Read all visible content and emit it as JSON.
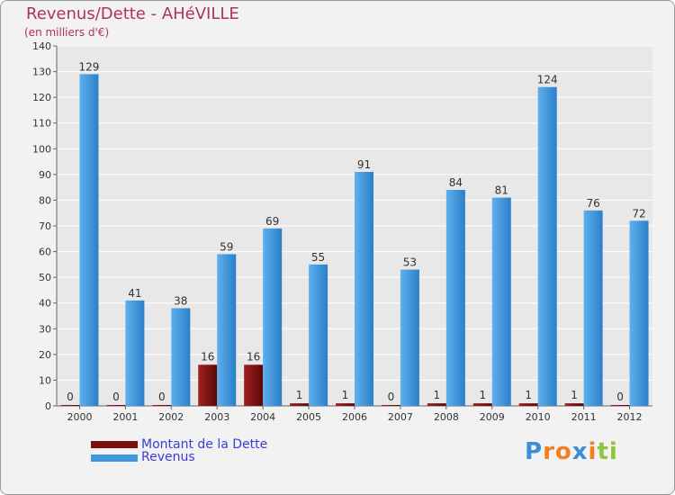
{
  "colors": {
    "background": "#f2f2f2",
    "title": "#b03060",
    "dette": "#7a1010",
    "revenus": "#3f97dd",
    "legend_text": "#3b3bd6",
    "grid": "#ffffff"
  },
  "logo": {
    "text": "Proxiti",
    "letters": [
      {
        "ch": "P",
        "color": "#3a8fd6"
      },
      {
        "ch": "r",
        "color": "#f08020"
      },
      {
        "ch": "o",
        "color": "#f08020"
      },
      {
        "ch": "x",
        "color": "#3a8fd6"
      },
      {
        "ch": "i",
        "color": "#f08020"
      },
      {
        "ch": "t",
        "color": "#8cc63e"
      },
      {
        "ch": "i",
        "color": "#8cc63e"
      }
    ]
  },
  "chart_data": {
    "type": "bar",
    "title": "Revenus/Dette - AHéVILLE",
    "subtitle": "(en milliers d'€)",
    "xlabel": "",
    "ylabel": "",
    "ylim": [
      0,
      140
    ],
    "yticks": [
      0,
      10,
      20,
      30,
      40,
      50,
      60,
      70,
      80,
      90,
      100,
      110,
      120,
      130,
      140
    ],
    "grid": true,
    "legend_position": "bottom-left",
    "categories": [
      "2000",
      "2001",
      "2002",
      "2003",
      "2004",
      "2005",
      "2006",
      "2007",
      "2008",
      "2009",
      "2010",
      "2011",
      "2012"
    ],
    "series": [
      {
        "name": "Montant de la Dette",
        "values": [
          0,
          0,
          0,
          16,
          16,
          1,
          1,
          0,
          1,
          1,
          1,
          1,
          0
        ]
      },
      {
        "name": "Revenus",
        "values": [
          129,
          41,
          38,
          59,
          69,
          55,
          91,
          53,
          84,
          81,
          124,
          76,
          72
        ]
      }
    ]
  }
}
